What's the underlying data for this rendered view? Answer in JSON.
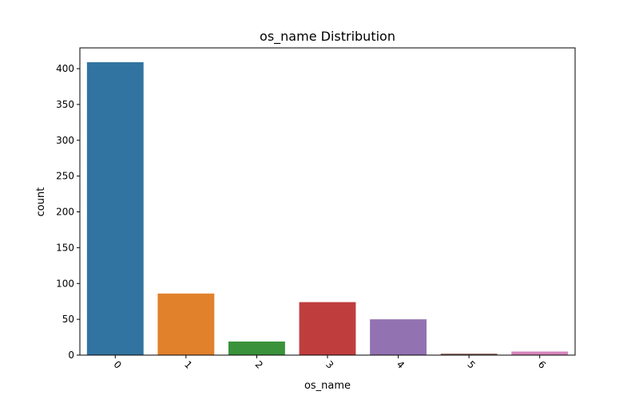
{
  "chart_data": {
    "type": "bar",
    "title": "os_name Distribution",
    "xlabel": "os_name",
    "ylabel": "count",
    "categories": [
      "0",
      "1",
      "2",
      "3",
      "4",
      "5",
      "6"
    ],
    "values": [
      409,
      86,
      19,
      74,
      50,
      2,
      5
    ],
    "ylim": [
      0,
      429
    ],
    "yticks": [
      0,
      50,
      100,
      150,
      200,
      250,
      300,
      350,
      400
    ],
    "ytick_labels": [
      "0",
      "50",
      "100",
      "150",
      "200",
      "250",
      "300",
      "350",
      "400"
    ],
    "xtick_rotation": 45,
    "grid": false,
    "colors": [
      "#3274a1",
      "#e1812c",
      "#3a923a",
      "#c03d3e",
      "#9372b2",
      "#845b53",
      "#d684bd"
    ]
  }
}
